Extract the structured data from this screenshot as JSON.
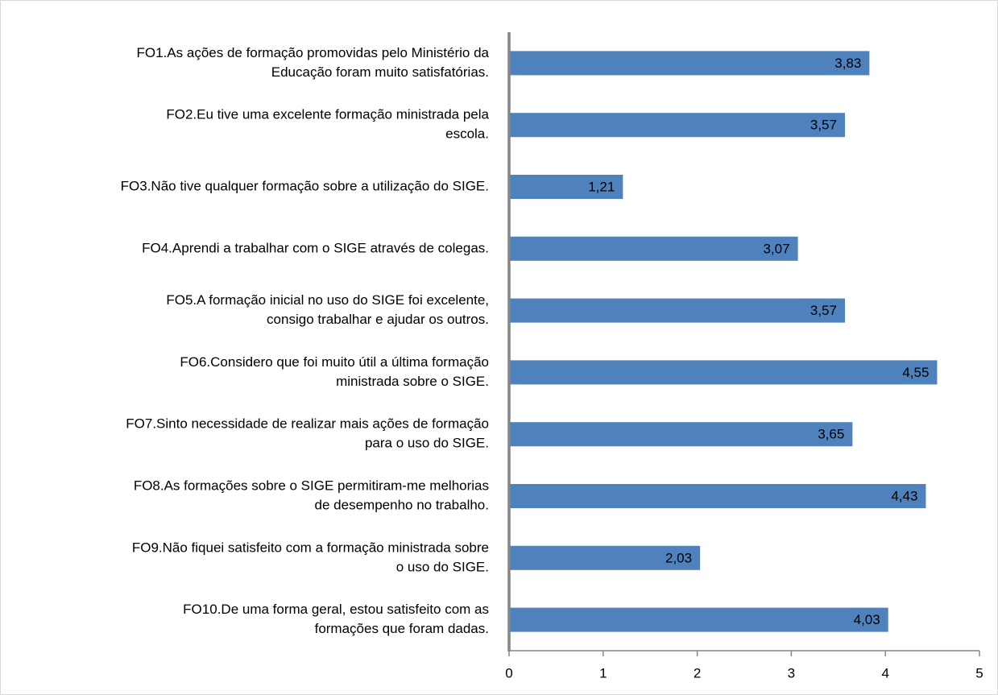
{
  "chart_data": {
    "type": "bar",
    "orientation": "horizontal",
    "categories": [
      [
        "FO1.As ações de formação promovidas pelo Ministério da",
        "Educação foram muito satisfatórias."
      ],
      [
        "FO2.Eu tive uma excelente formação ministrada pela",
        "escola."
      ],
      [
        "FO3.Não tive qualquer formação sobre a utilização do SIGE."
      ],
      [
        "FO4.Aprendi a trabalhar com o SIGE através de colegas."
      ],
      [
        "FO5.A formação inicial no uso do SIGE foi excelente,",
        "consigo trabalhar e ajudar os outros."
      ],
      [
        "FO6.Considero que foi muito útil a última formação",
        "ministrada sobre o SIGE."
      ],
      [
        "FO7.Sinto necessidade de realizar mais ações de formação",
        "para o uso do SIGE."
      ],
      [
        "FO8.As formações sobre o SIGE permitiram-me melhorias",
        "de desempenho no trabalho."
      ],
      [
        "FO9.Não fiquei satisfeito com a formação ministrada sobre",
        "o uso do SIGE."
      ],
      [
        "FO10.De uma forma geral, estou satisfeito com as",
        "formações que foram dadas."
      ]
    ],
    "values": [
      3.83,
      3.57,
      1.21,
      3.07,
      3.57,
      4.55,
      3.65,
      4.43,
      2.03,
      4.03
    ],
    "value_labels": [
      "3,83",
      "3,57",
      "1,21",
      "3,07",
      "3,57",
      "4,55",
      "3,65",
      "4,43",
      "2,03",
      "4,03"
    ],
    "color": "#4f81bd",
    "xlim": [
      0,
      5
    ],
    "xticks": [
      0,
      1,
      2,
      3,
      4,
      5
    ]
  }
}
